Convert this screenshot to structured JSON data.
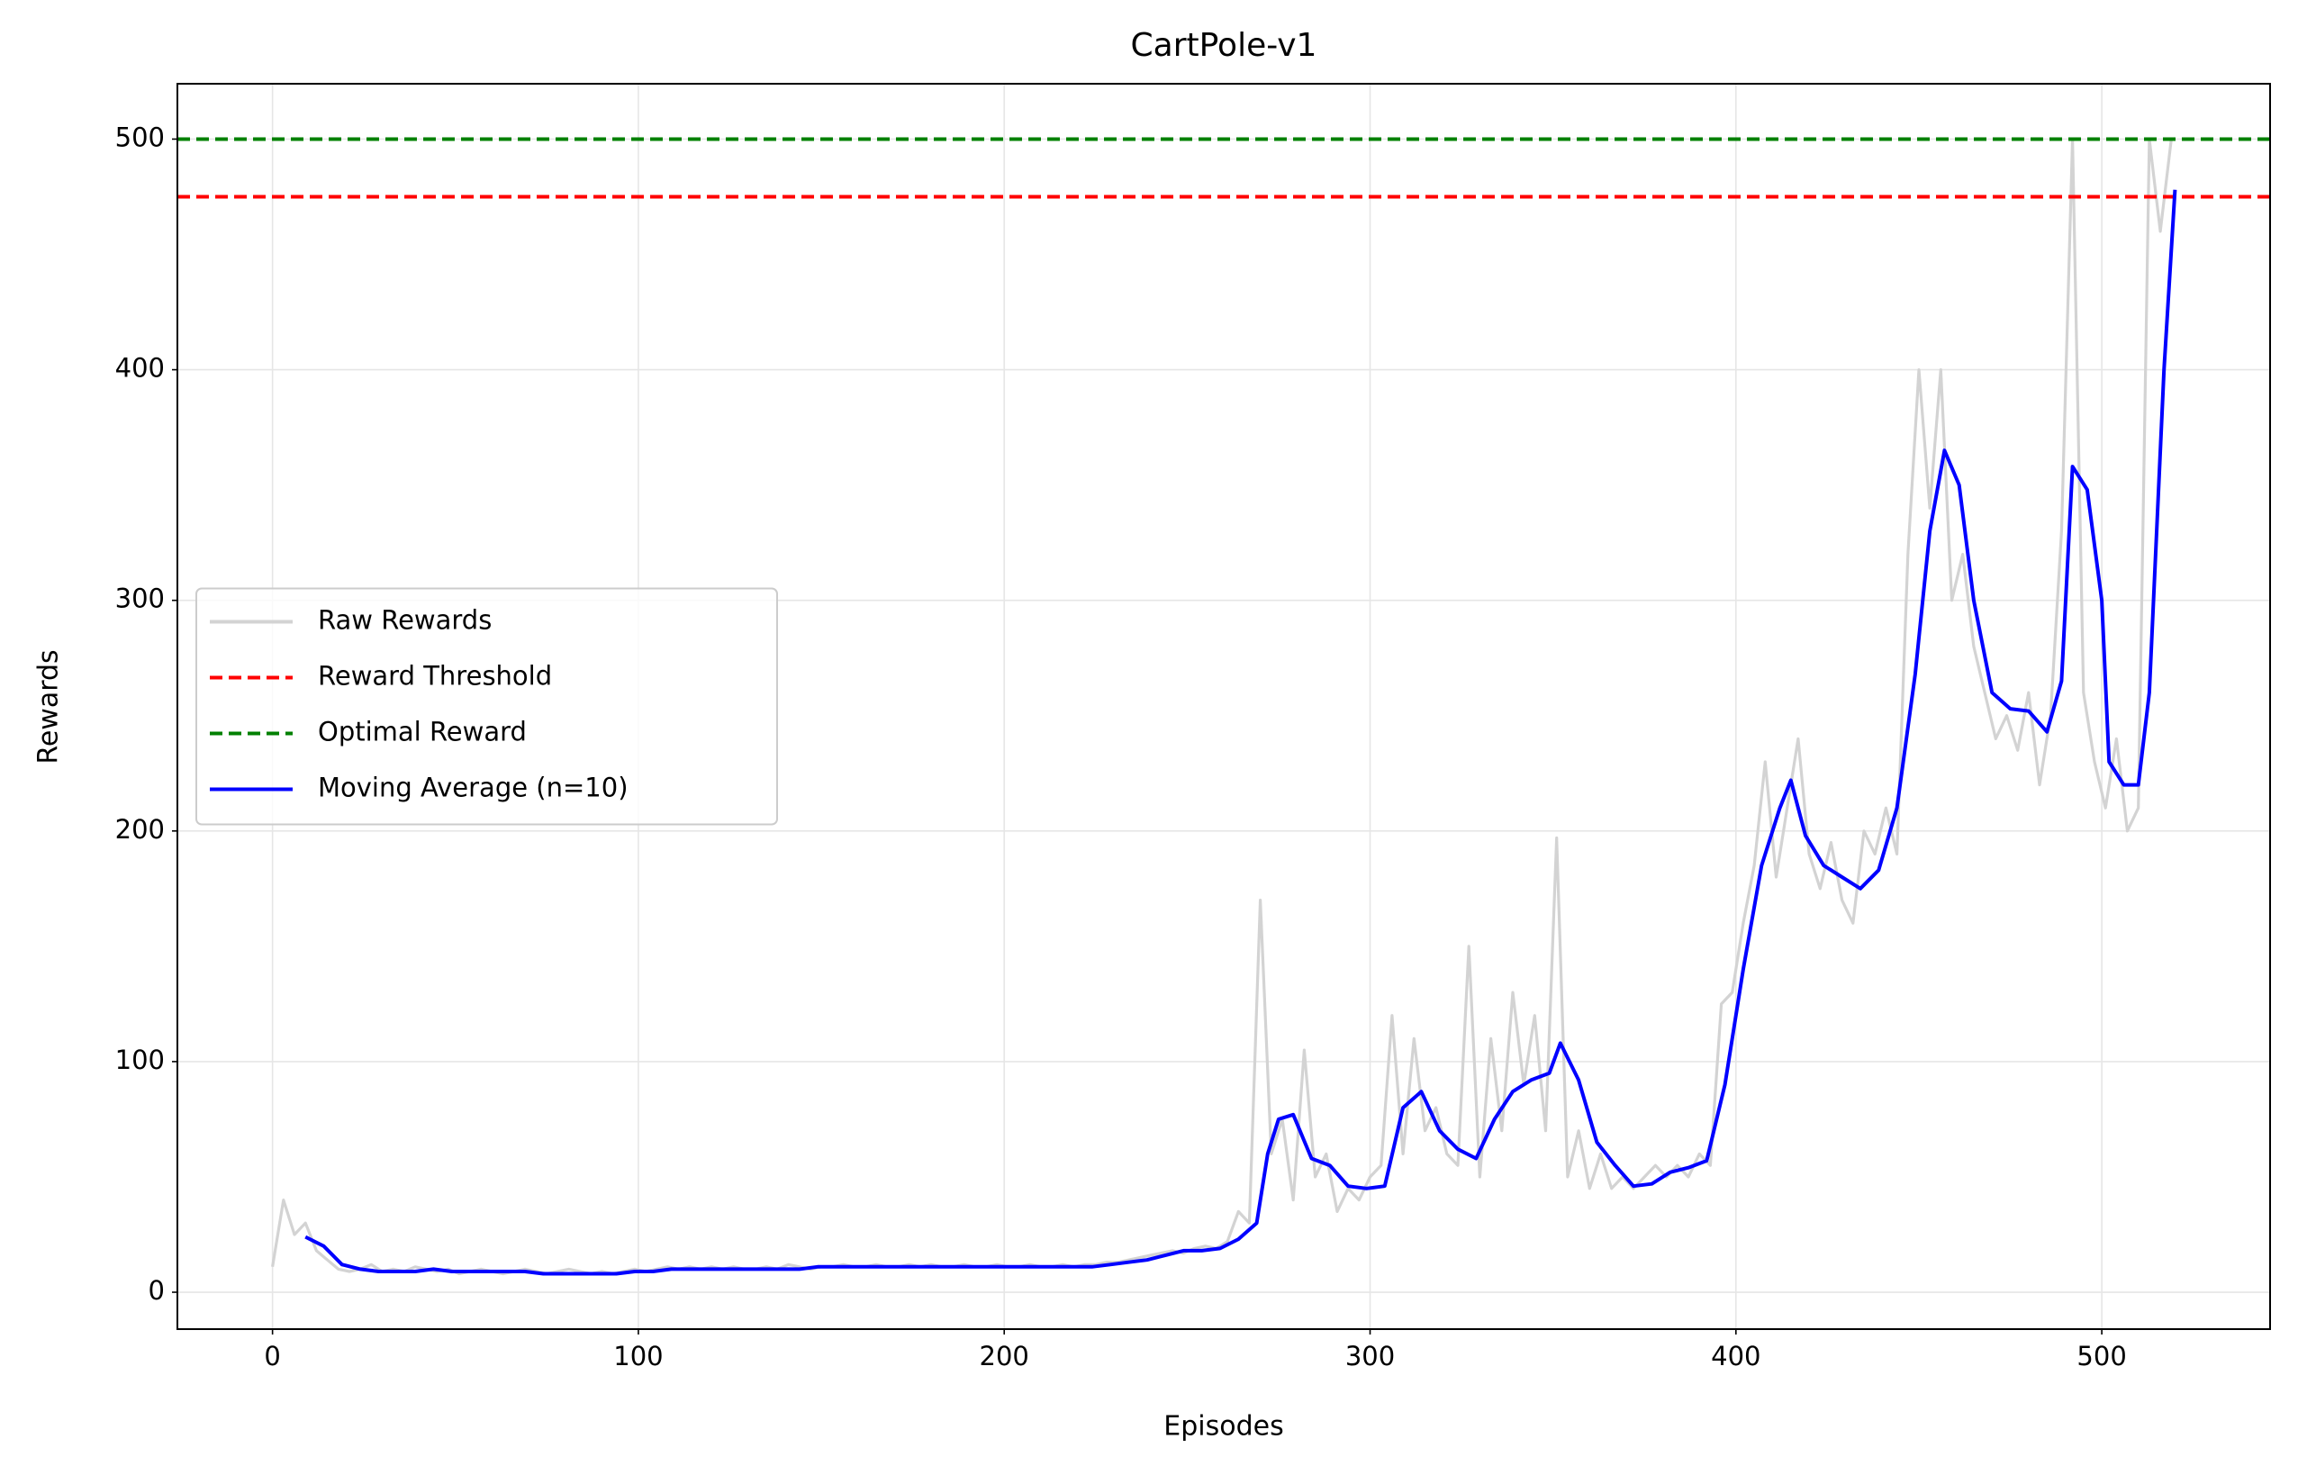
{
  "chart_data": {
    "type": "line",
    "title": "CartPole-v1",
    "xlabel": "Episodes",
    "ylabel": "Rewards",
    "xlim": [
      -26,
      546
    ],
    "ylim": [
      -16,
      524
    ],
    "xticks": [
      0,
      100,
      200,
      300,
      400,
      500
    ],
    "yticks": [
      0,
      100,
      200,
      300,
      400,
      500
    ],
    "grid": true,
    "legend": "center left",
    "series": [
      {
        "name": "Raw Rewards",
        "color": "#d3d3d3",
        "x": [
          0,
          3,
          6,
          9,
          12,
          15,
          18,
          21,
          24,
          27,
          30,
          33,
          36,
          39,
          42,
          45,
          48,
          51,
          54,
          57,
          60,
          63,
          66,
          69,
          72,
          75,
          78,
          81,
          84,
          87,
          90,
          93,
          96,
          99,
          102,
          105,
          108,
          111,
          114,
          117,
          120,
          123,
          126,
          129,
          132,
          135,
          138,
          141,
          144,
          147,
          150,
          153,
          156,
          159,
          162,
          165,
          168,
          171,
          174,
          177,
          180,
          183,
          186,
          189,
          192,
          195,
          198,
          201,
          204,
          207,
          210,
          213,
          216,
          219,
          222,
          225,
          228,
          231,
          234,
          237,
          240,
          243,
          246,
          249,
          252,
          255,
          258,
          261,
          264,
          267,
          270,
          273,
          276,
          279,
          282,
          285,
          288,
          291,
          294,
          297,
          300,
          303,
          306,
          309,
          312,
          315,
          318,
          321,
          324,
          327,
          330,
          333,
          336,
          339,
          342,
          345,
          348,
          351,
          354,
          357,
          360,
          363,
          366,
          369,
          372,
          375,
          378,
          381,
          384,
          387,
          390,
          393,
          396,
          399,
          402,
          405,
          408,
          411,
          414,
          417,
          420,
          423,
          426,
          429,
          432,
          435,
          438,
          441,
          444,
          447,
          450,
          453,
          456,
          459,
          462,
          465,
          468,
          471,
          474,
          477,
          480,
          483,
          486,
          489,
          492,
          495,
          498,
          501,
          504,
          507,
          510,
          513,
          516,
          519
        ],
        "values": [
          11,
          40,
          25,
          30,
          18,
          14,
          10,
          9,
          10,
          12,
          9,
          10,
          9,
          11,
          10,
          9,
          10,
          8,
          9,
          10,
          9,
          8,
          9,
          10,
          9,
          8,
          9,
          10,
          9,
          8,
          9,
          8,
          9,
          10,
          9,
          10,
          11,
          10,
          11,
          10,
          11,
          10,
          11,
          10,
          10,
          11,
          10,
          12,
          11,
          10,
          11,
          11,
          12,
          11,
          11,
          12,
          11,
          11,
          12,
          11,
          12,
          11,
          11,
          12,
          11,
          11,
          12,
          11,
          11,
          12,
          11,
          11,
          12,
          11,
          12,
          12,
          13,
          13,
          14,
          15,
          16,
          17,
          18,
          17,
          19,
          20,
          19,
          22,
          35,
          30,
          170,
          60,
          75,
          40,
          105,
          50,
          60,
          35,
          45,
          40,
          50,
          55,
          120,
          60,
          110,
          70,
          80,
          60,
          55,
          150,
          50,
          110,
          70,
          130,
          90,
          120,
          70,
          197,
          50,
          70,
          45,
          60,
          45,
          50,
          45,
          50,
          55,
          50,
          55,
          50,
          60,
          55,
          125,
          130,
          160,
          185,
          230,
          180,
          210,
          240,
          190,
          175,
          195,
          170,
          160,
          200,
          190,
          210,
          190,
          320,
          400,
          340,
          400,
          300,
          320,
          280,
          260,
          240,
          250,
          235,
          260,
          220,
          250,
          330,
          500,
          260,
          230,
          210,
          240,
          200,
          210,
          500,
          460,
          500
        ]
      },
      {
        "name": "Reward Threshold",
        "color": "#ff0000",
        "kind": "hline",
        "dashed": true,
        "value": 475
      },
      {
        "name": "Optimal Reward",
        "color": "#008000",
        "kind": "hline",
        "dashed": true,
        "value": 500
      },
      {
        "name": "Moving Average (n=10)",
        "color": "#0000ff",
        "x": [
          9,
          14,
          19,
          24,
          29,
          34,
          39,
          44,
          49,
          54,
          59,
          64,
          69,
          74,
          79,
          84,
          89,
          94,
          99,
          104,
          109,
          114,
          119,
          124,
          129,
          134,
          139,
          144,
          149,
          154,
          159,
          164,
          169,
          174,
          179,
          184,
          189,
          194,
          199,
          204,
          209,
          214,
          219,
          224,
          229,
          234,
          239,
          244,
          249,
          254,
          259,
          264,
          269,
          272,
          275,
          279,
          284,
          289,
          294,
          299,
          304,
          309,
          314,
          319,
          324,
          329,
          334,
          339,
          344,
          349,
          352,
          357,
          362,
          367,
          372,
          377,
          382,
          387,
          392,
          397,
          402,
          407,
          412,
          415,
          419,
          424,
          429,
          434,
          439,
          444,
          449,
          453,
          457,
          461,
          465,
          470,
          475,
          480,
          485,
          489,
          492,
          496,
          500,
          502,
          506,
          510,
          513,
          517,
          520
        ],
        "values": [
          24,
          20,
          12,
          10,
          9,
          9,
          9,
          10,
          9,
          9,
          9,
          9,
          9,
          8,
          8,
          8,
          8,
          8,
          9,
          9,
          10,
          10,
          10,
          10,
          10,
          10,
          10,
          10,
          11,
          11,
          11,
          11,
          11,
          11,
          11,
          11,
          11,
          11,
          11,
          11,
          11,
          11,
          11,
          11,
          12,
          13,
          14,
          16,
          18,
          18,
          19,
          23,
          30,
          60,
          75,
          77,
          58,
          55,
          46,
          45,
          46,
          80,
          87,
          70,
          62,
          58,
          75,
          87,
          92,
          95,
          108,
          92,
          65,
          55,
          46,
          47,
          52,
          54,
          57,
          90,
          140,
          185,
          210,
          222,
          198,
          185,
          180,
          175,
          183,
          210,
          268,
          330,
          365,
          350,
          300,
          260,
          253,
          252,
          243,
          265,
          358,
          348,
          300,
          230,
          220,
          220,
          260,
          400,
          478
        ]
      }
    ]
  }
}
